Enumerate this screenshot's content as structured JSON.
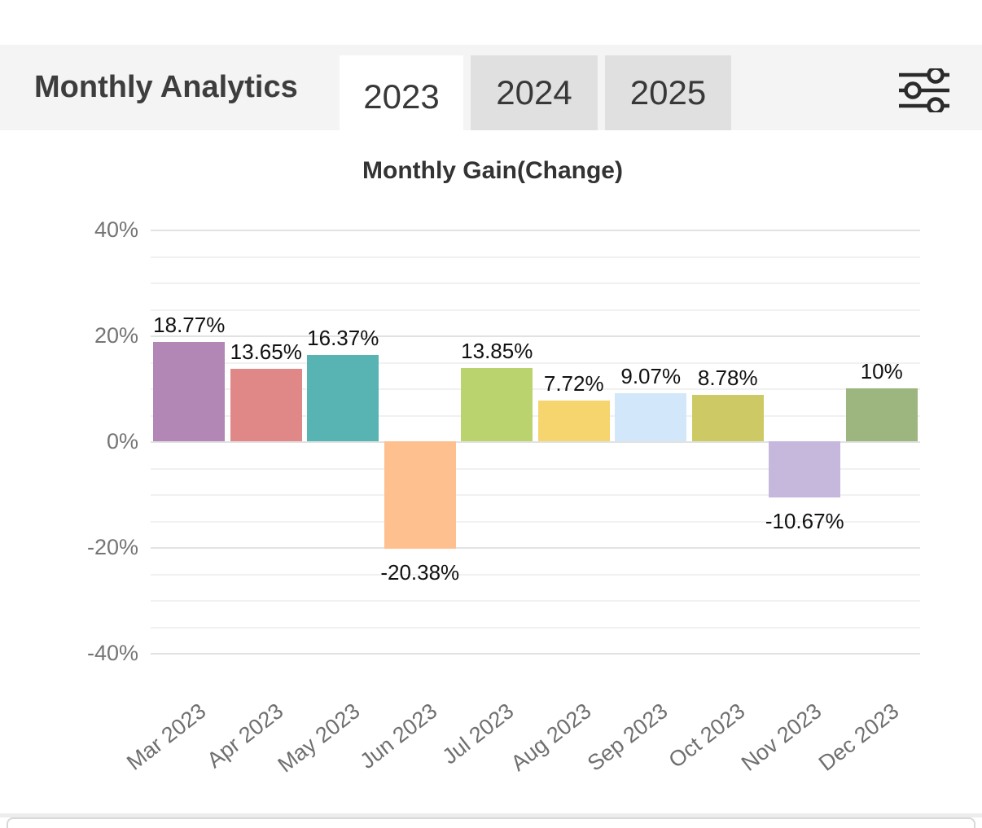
{
  "header": {
    "title": "Monthly Analytics",
    "tabs": [
      {
        "label": "2023",
        "active": true
      },
      {
        "label": "2024",
        "active": false
      },
      {
        "label": "2025",
        "active": false
      }
    ],
    "filter_icon": "sliders-icon",
    "background_color": "#f4f4f4",
    "active_tab_background": "#ffffff",
    "inactive_tab_background": "#e0e0e0"
  },
  "chart_data": {
    "type": "bar",
    "title": "Monthly Gain(Change)",
    "categories": [
      "Mar 2023",
      "Apr 2023",
      "May 2023",
      "Jun 2023",
      "Jul 2023",
      "Aug 2023",
      "Sep 2023",
      "Oct 2023",
      "Nov 2023",
      "Dec 2023"
    ],
    "values": [
      18.77,
      13.65,
      16.37,
      -20.38,
      13.85,
      7.72,
      9.07,
      8.78,
      -10.67,
      10
    ],
    "labels": [
      "18.77%",
      "13.65%",
      "16.37%",
      "-20.38%",
      "13.85%",
      "7.72%",
      "9.07%",
      "8.78%",
      "-10.67%",
      "10%"
    ],
    "bar_colors": [
      "#b287b5",
      "#e08787",
      "#58b3b3",
      "#fec08f",
      "#bad36e",
      "#f6d46e",
      "#d2e7f9",
      "#cdca66",
      "#c6b7dd",
      "#9db67f"
    ],
    "ytick_labels": [
      "40%",
      "20%",
      "0%",
      "-20%",
      "-40%"
    ],
    "ytick_values": [
      40,
      20,
      0,
      -20,
      -40
    ],
    "ylim": [
      -40,
      40
    ],
    "grid_minor_step_pct": 5,
    "xlabel": "",
    "ylabel": "",
    "legend": "none"
  }
}
